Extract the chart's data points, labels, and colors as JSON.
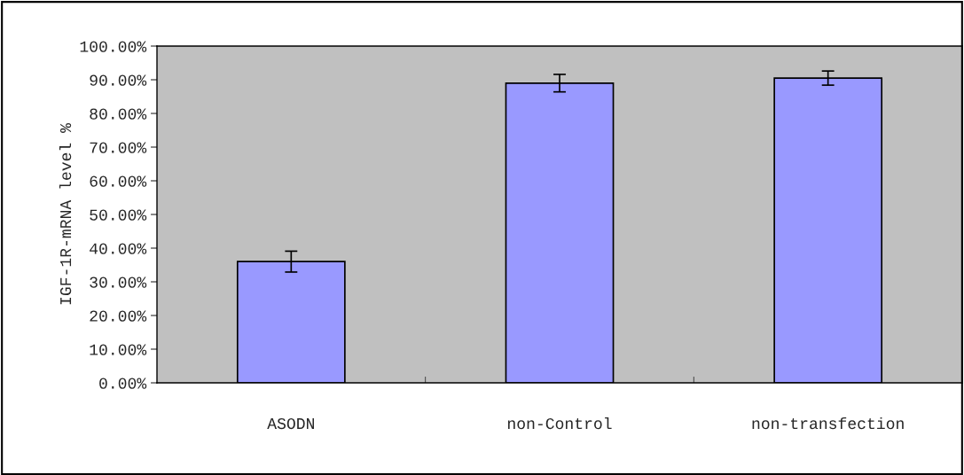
{
  "chart_data": {
    "type": "bar",
    "ylabel": "IGF-1R-mRNA level %",
    "categories": [
      "ASODN",
      "non-Control",
      "non-transfection"
    ],
    "values": [
      36.0,
      89.0,
      90.5
    ],
    "errors": [
      3.1,
      2.6,
      2.1
    ],
    "color": "#9999ff",
    "ylim": [
      0,
      100
    ],
    "yticks": [
      {
        "value": 0,
        "label": "0.00%"
      },
      {
        "value": 10,
        "label": "10.00%"
      },
      {
        "value": 20,
        "label": "20.00%"
      },
      {
        "value": 30,
        "label": "30.00%"
      },
      {
        "value": 40,
        "label": "40.00%"
      },
      {
        "value": 50,
        "label": "50.00%"
      },
      {
        "value": 60,
        "label": "60.00%"
      },
      {
        "value": 70,
        "label": "70.00%"
      },
      {
        "value": 80,
        "label": "80.00%"
      },
      {
        "value": 90,
        "label": "90.00%"
      },
      {
        "value": 100,
        "label": "100.00%"
      }
    ],
    "grid": false,
    "legend": false
  }
}
